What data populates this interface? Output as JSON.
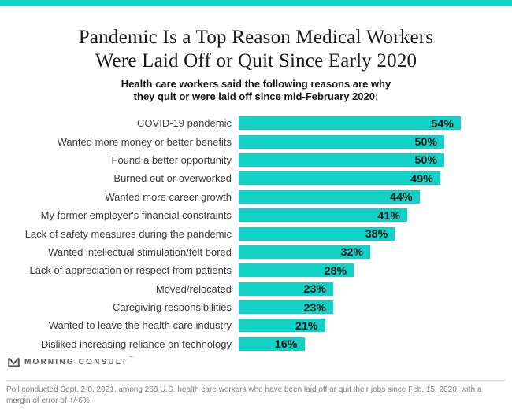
{
  "page": {
    "accent_color": "#11d2c6",
    "title_line1": "Pandemic Is a Top Reason Medical Workers",
    "title_line2": "Were Laid Off or Quit Since Early 2020",
    "subtitle_line1": "Health care workers said the following reasons are why",
    "subtitle_line2": "they quit or were laid off since mid-February 2020:"
  },
  "chart_data": {
    "type": "bar",
    "orientation": "horizontal",
    "title": "Pandemic Is a Top Reason Medical Workers Were Laid Off or Quit Since Early 2020",
    "subtitle": "Health care workers said the following reasons are why they quit or were laid off since mid-February 2020:",
    "categories": [
      "COVID-19 pandemic",
      "Wanted more money or better benefits",
      "Found a better opportunity",
      "Burned out or overworked",
      "Wanted more career growth",
      "My former employer's financial constraints",
      "Lack of safety measures during the pandemic",
      "Wanted intellectual stimulation/felt bored",
      "Lack of appreciation or respect from patients",
      "Moved/relocated",
      "Caregiving responsibilities",
      "Wanted to leave the health care industry",
      "Disliked increasing reliance on technology"
    ],
    "values": [
      54,
      50,
      50,
      49,
      44,
      41,
      38,
      32,
      28,
      23,
      23,
      21,
      16
    ],
    "value_suffix": "%",
    "bar_color": "#11d2c6",
    "value_label_color": "#141414",
    "xlim": [
      0,
      54
    ],
    "grid": false,
    "legend": false,
    "value_labels_inside_bar_right": true
  },
  "footer": {
    "brand": "MORNING CONSULT",
    "trademark": "™",
    "footnote": "Poll conducted Sept. 2-8, 2021, among 268 U.S. health care workers who have been laid off or quit their jobs since Feb. 15, 2020, with a margin of error of +/-6%."
  }
}
